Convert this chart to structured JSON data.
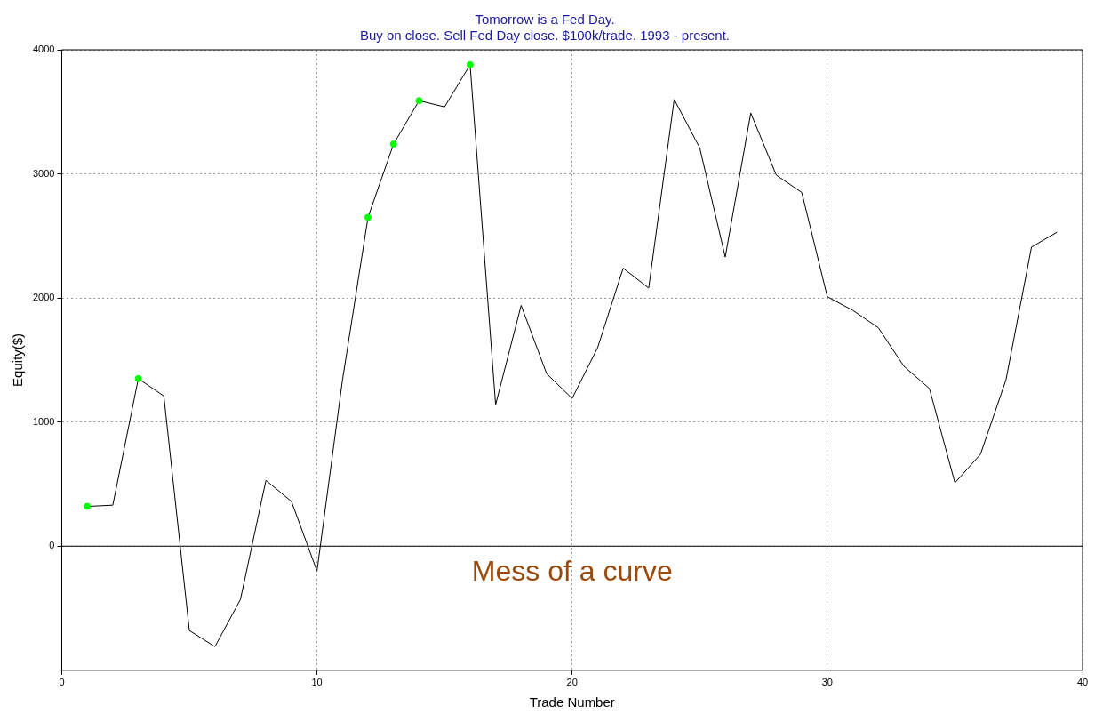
{
  "chart_data": {
    "type": "line",
    "title": [
      "Tomorrow is a Fed Day.",
      "Buy on close. Sell Fed Day close. $100k/trade. 1993 - present."
    ],
    "xlabel": "Trade Number",
    "ylabel": "Equity($)",
    "x": [
      1,
      2,
      3,
      4,
      5,
      6,
      7,
      8,
      9,
      10,
      11,
      12,
      13,
      14,
      15,
      16,
      17,
      18,
      19,
      20,
      21,
      22,
      23,
      24,
      25,
      26,
      27,
      28,
      29,
      30,
      31,
      32,
      33,
      34,
      35,
      36,
      37,
      38,
      39
    ],
    "series": [
      {
        "color": "#000000",
        "marker": "none",
        "values": [
          320,
          330,
          1350,
          1210,
          -680,
          -810,
          -430,
          530,
          360,
          -200,
          1340,
          2650,
          3240,
          3590,
          3540,
          3880,
          1140,
          1940,
          1390,
          1190,
          1600,
          2240,
          2080,
          3600,
          3210,
          2330,
          3490,
          2990,
          2850,
          2010,
          1900,
          1760,
          1450,
          1270,
          510,
          740,
          1340,
          2410,
          2530
        ]
      },
      {
        "type": "scatter",
        "color": "#00ff00",
        "marker": "circle",
        "x": [
          1,
          3,
          12,
          13,
          14,
          16
        ],
        "values": [
          320,
          1350,
          2650,
          3240,
          3590,
          3880
        ]
      }
    ],
    "xlim": [
      0,
      40
    ],
    "xticks": [
      0,
      10,
      20,
      30,
      40
    ],
    "ylim": [
      -1000,
      4000
    ],
    "yticks": [
      {
        "value": -1000,
        "label": null
      },
      0,
      1000,
      2000,
      3000,
      4000
    ],
    "grid": true,
    "legend": false,
    "ref_lines": [
      {
        "axis": "y",
        "value": 0,
        "color": "#000000"
      }
    ],
    "annotations": [
      "Mess of a curve"
    ]
  }
}
